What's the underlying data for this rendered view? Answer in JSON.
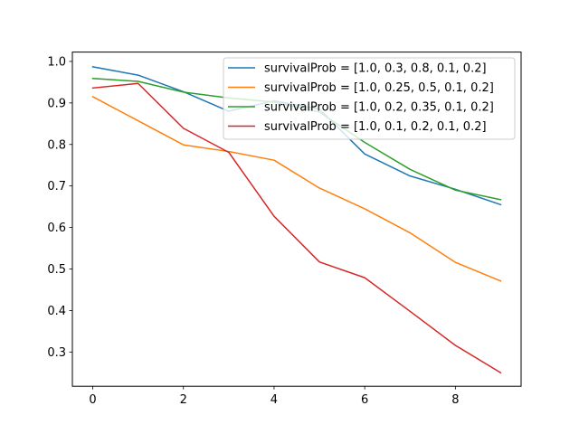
{
  "chart_data": {
    "type": "line",
    "title": "",
    "xlabel": "",
    "ylabel": "",
    "xlim": [
      -0.45,
      9.45
    ],
    "ylim": [
      0.2175,
      1.0225
    ],
    "xticks": [
      0,
      2,
      4,
      6,
      8
    ],
    "yticks": [
      0.3,
      0.4,
      0.5,
      0.6,
      0.7,
      0.8,
      0.9,
      1.0
    ],
    "xtick_labels": [
      "0",
      "2",
      "4",
      "6",
      "8"
    ],
    "ytick_labels": [
      "0.3",
      "0.4",
      "0.5",
      "0.6",
      "0.7",
      "0.8",
      "0.9",
      "1.0"
    ],
    "grid": false,
    "legend_position": "top-right",
    "x": [
      0,
      1,
      2,
      3,
      4,
      5,
      6,
      7,
      8,
      9
    ],
    "series": [
      {
        "name": "survivalProb = [1.0, 0.3, 0.8, 0.1, 0.2]",
        "color": "#1f77b4",
        "values": [
          0.987,
          0.967,
          0.927,
          0.88,
          0.905,
          0.885,
          0.777,
          0.724,
          0.692,
          0.655
        ]
      },
      {
        "name": "survivalProb = [1.0, 0.25, 0.5, 0.1, 0.2]",
        "color": "#ff7f0e",
        "values": [
          0.915,
          0.857,
          0.799,
          0.783,
          0.762,
          0.695,
          0.645,
          0.587,
          0.516,
          0.471
        ]
      },
      {
        "name": "survivalProb = [1.0, 0.2, 0.35, 0.1, 0.2]",
        "color": "#2ca02c",
        "values": [
          0.959,
          0.952,
          0.926,
          0.912,
          0.902,
          0.878,
          0.805,
          0.74,
          0.69,
          0.667
        ]
      },
      {
        "name": "survivalProb = [1.0, 0.1, 0.2, 0.1, 0.2]",
        "color": "#d62728",
        "values": [
          0.936,
          0.947,
          0.839,
          0.781,
          0.627,
          0.517,
          0.479,
          0.398,
          0.316,
          0.25
        ]
      }
    ]
  }
}
